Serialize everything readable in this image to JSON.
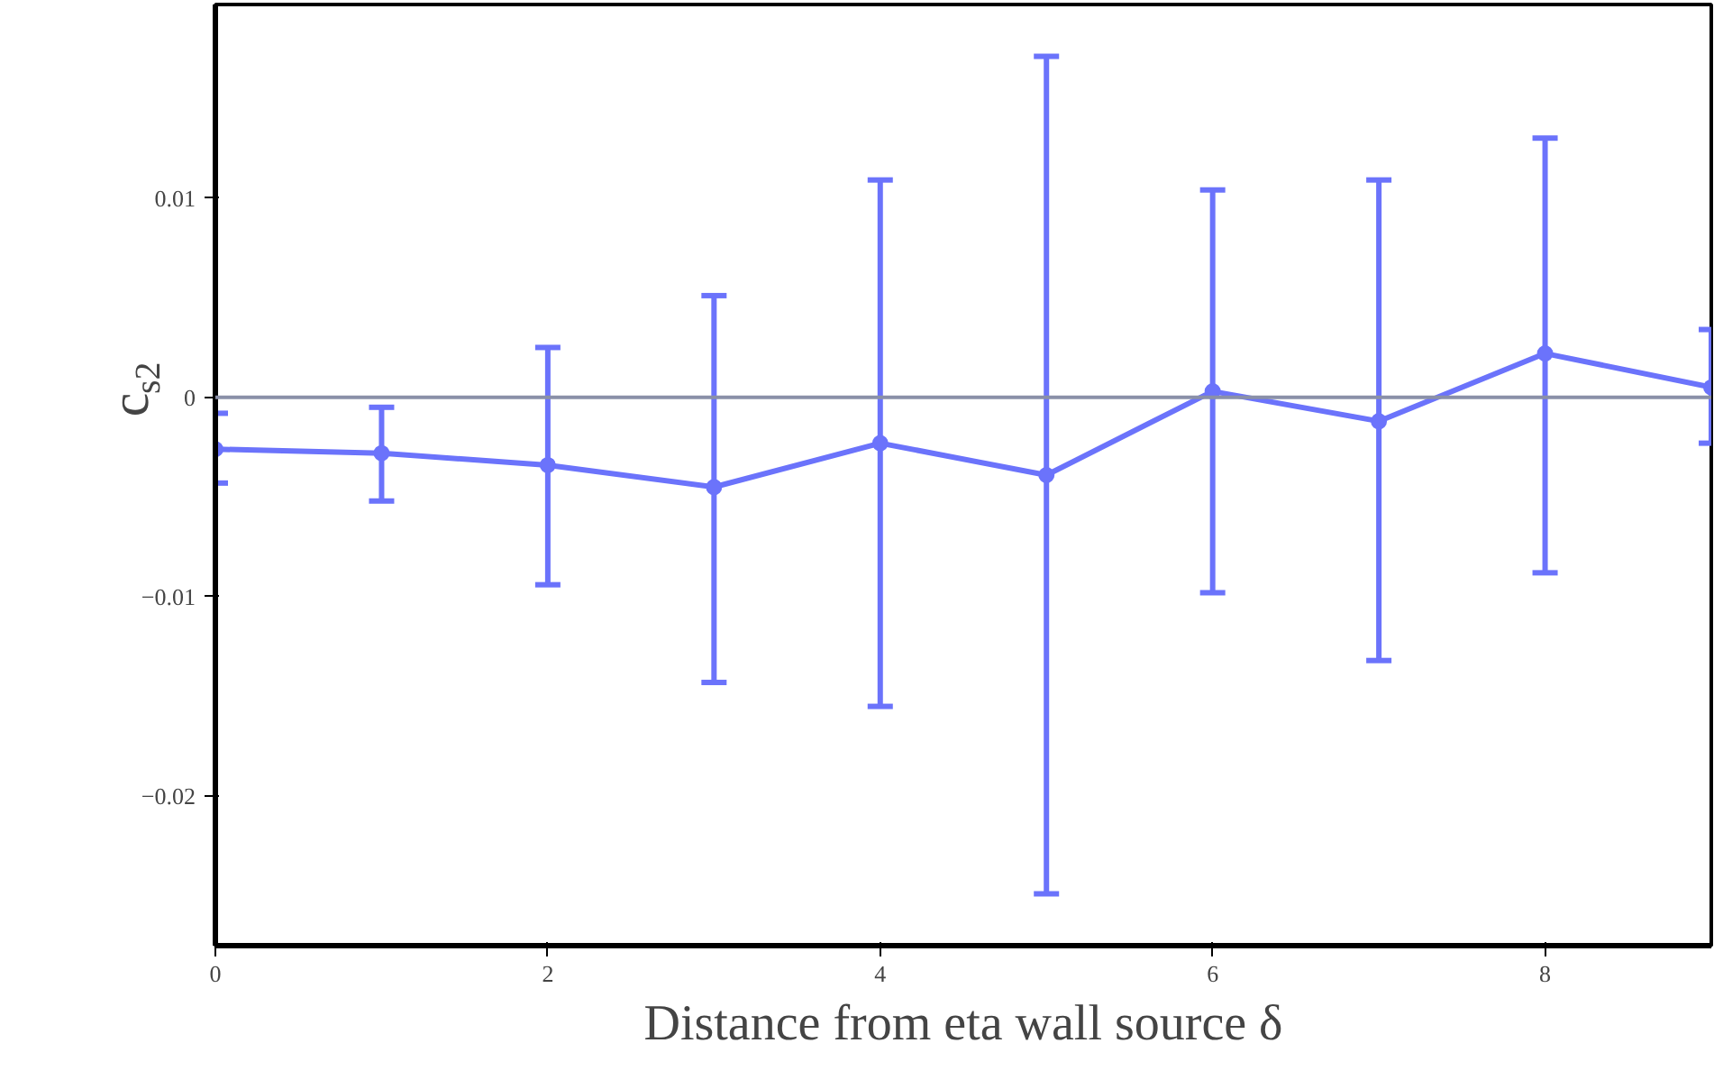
{
  "chart_data": {
    "type": "line",
    "xlabel": "Distance from eta wall source δ",
    "ylabel": "c$_{s2}$",
    "x": [
      0,
      1,
      2,
      3,
      4,
      5,
      6,
      7,
      8,
      9
    ],
    "series": [
      {
        "color": "#6b73fb",
        "values": [
          -0.0026,
          -0.0028,
          -0.0034,
          -0.0045,
          -0.0023,
          -0.0039,
          0.0003,
          -0.0012,
          0.0022,
          0.0005
        ],
        "errors": [
          [
            -0.0043,
            -0.0008
          ],
          [
            -0.0052,
            -0.0005
          ],
          [
            -0.0094,
            0.0025
          ],
          [
            -0.0143,
            0.0051
          ],
          [
            -0.0155,
            0.0109
          ],
          [
            -0.0249,
            0.0171
          ],
          [
            -0.0098,
            0.0104
          ],
          [
            -0.0132,
            0.0109
          ],
          [
            -0.0088,
            0.013
          ],
          [
            -0.0023,
            0.0034
          ]
        ]
      }
    ],
    "xlim": [
      0,
      9
    ],
    "ylim": [
      -0.0275,
      0.0197
    ],
    "xticks": [
      0,
      2,
      4,
      6,
      8
    ],
    "yticks": [
      {
        "value": -0.02,
        "label": "−0.02"
      },
      {
        "value": -0.01,
        "label": "−0.01"
      },
      0,
      0.01
    ],
    "ref_lines": [
      {
        "axis": "y",
        "value": 0,
        "color": "#8a90a8"
      }
    ],
    "marker": "circle",
    "grid": false
  }
}
